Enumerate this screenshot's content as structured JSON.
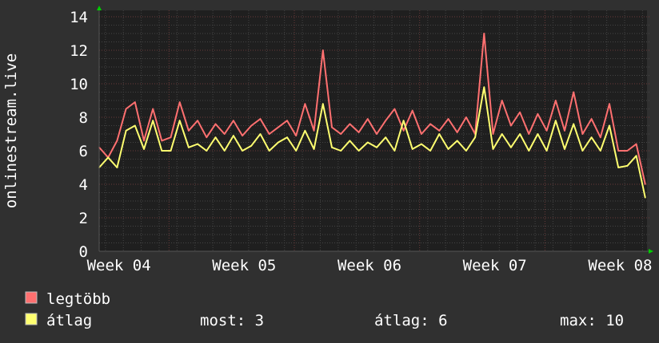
{
  "chart_data": {
    "type": "line",
    "ylabel": "onlinestream.live",
    "xlabel": "",
    "ylim": [
      0,
      14
    ],
    "yticks": [
      0,
      2,
      4,
      6,
      8,
      10,
      12,
      14
    ],
    "xlim_days": [
      0,
      30.6
    ],
    "xtick_labels": [
      {
        "label": "Week 04",
        "day": 1.1
      },
      {
        "label": "Week 05",
        "day": 8.1
      },
      {
        "label": "Week 06",
        "day": 15.1
      },
      {
        "label": "Week 07",
        "day": 22.1
      },
      {
        "label": "Week 08",
        "day": 29.1
      }
    ],
    "major_x_grid_days": [
      3.9,
      10.9,
      17.9,
      24.9
    ],
    "grid": true,
    "x": [
      0,
      0.5,
      1,
      1.5,
      2,
      2.5,
      3,
      3.5,
      4,
      4.5,
      5,
      5.5,
      6,
      6.5,
      7,
      7.5,
      8,
      8.5,
      9,
      9.5,
      10,
      10.5,
      11,
      11.5,
      12,
      12.5,
      13,
      13.5,
      14,
      14.5,
      15,
      15.5,
      16,
      16.5,
      17,
      17.5,
      18,
      18.5,
      19,
      19.5,
      20,
      20.5,
      21,
      21.5,
      22,
      22.5,
      23,
      23.5,
      24,
      24.5,
      25,
      25.5,
      26,
      26.5,
      27,
      27.5,
      28,
      28.5,
      29,
      29.5,
      30,
      30.5
    ],
    "series": [
      {
        "name": "legtöbb",
        "color": "#ff7070",
        "values": [
          6.2,
          5.6,
          6.6,
          8.5,
          8.9,
          6.6,
          8.5,
          6.6,
          6.8,
          8.9,
          7.2,
          7.8,
          6.8,
          7.6,
          7.0,
          7.8,
          6.9,
          7.5,
          7.9,
          7.0,
          7.4,
          7.8,
          6.9,
          8.8,
          7.2,
          12.0,
          7.4,
          7.0,
          7.6,
          7.1,
          7.9,
          7.0,
          7.8,
          8.5,
          7.2,
          8.4,
          7.0,
          7.6,
          7.2,
          7.9,
          7.1,
          8.0,
          7.0,
          13.0,
          7.0,
          9.0,
          7.5,
          8.3,
          7.0,
          8.2,
          7.2,
          9.0,
          7.2,
          9.5,
          7.0,
          7.9,
          6.8,
          8.8,
          6.0,
          6.0,
          6.4,
          4.0
        ]
      },
      {
        "name": "átlag",
        "color": "#ffff70",
        "values": [
          5.0,
          5.6,
          5.0,
          7.2,
          7.5,
          6.1,
          7.8,
          6.0,
          6.0,
          7.8,
          6.2,
          6.4,
          6.0,
          6.8,
          6.0,
          6.9,
          6.0,
          6.3,
          7.0,
          6.0,
          6.5,
          6.8,
          6.0,
          7.2,
          6.1,
          8.8,
          6.2,
          6.0,
          6.6,
          6.0,
          6.5,
          6.2,
          6.8,
          6.0,
          7.8,
          6.1,
          6.4,
          6.0,
          7.0,
          6.1,
          6.6,
          6.0,
          6.8,
          9.8,
          6.1,
          7.0,
          6.2,
          7.0,
          6.0,
          7.0,
          6.0,
          7.8,
          6.1,
          7.6,
          6.0,
          6.8,
          6.0,
          7.5,
          5.0,
          5.1,
          5.7,
          3.2
        ]
      }
    ]
  },
  "legend": {
    "max_label": "legtöbb",
    "avg_label": "átlag",
    "now_text": "most: 3",
    "avg_text": "átlag: 6",
    "max_text": "max: 10"
  }
}
